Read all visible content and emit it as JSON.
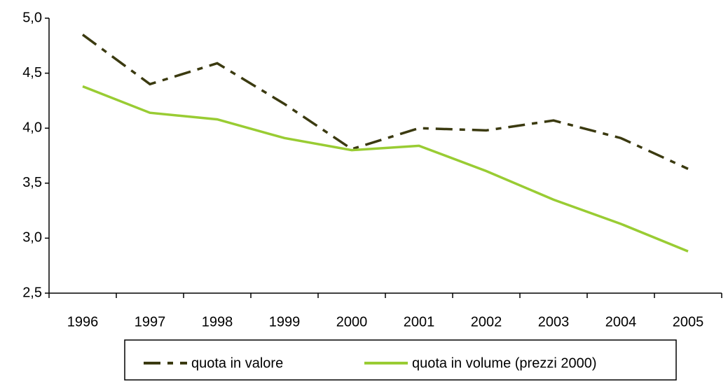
{
  "chart_data": {
    "type": "line",
    "categories": [
      "1996",
      "1997",
      "1998",
      "1999",
      "2000",
      "2001",
      "2002",
      "2003",
      "2004",
      "2005"
    ],
    "series": [
      {
        "name": "quota in valore",
        "color": "#3b3a10",
        "dash": true,
        "values": [
          4.85,
          4.4,
          4.59,
          4.22,
          3.81,
          4.0,
          3.98,
          4.07,
          3.91,
          3.63
        ]
      },
      {
        "name": "quota in volume (prezzi 2000)",
        "color": "#99cc33",
        "dash": false,
        "values": [
          4.38,
          4.14,
          4.08,
          3.91,
          3.8,
          3.84,
          3.61,
          3.35,
          3.13,
          2.88
        ]
      }
    ],
    "ylim": [
      2.5,
      5.0
    ],
    "yticks": [
      {
        "value": 2.5,
        "label": "2,5"
      },
      {
        "value": 3.0,
        "label": "3,0"
      },
      {
        "value": 3.5,
        "label": "3,5"
      },
      {
        "value": 4.0,
        "label": "4,0"
      },
      {
        "value": 4.5,
        "label": "4,5"
      },
      {
        "value": 5.0,
        "label": "5,0"
      }
    ],
    "grid": false,
    "legend": "bottom"
  }
}
